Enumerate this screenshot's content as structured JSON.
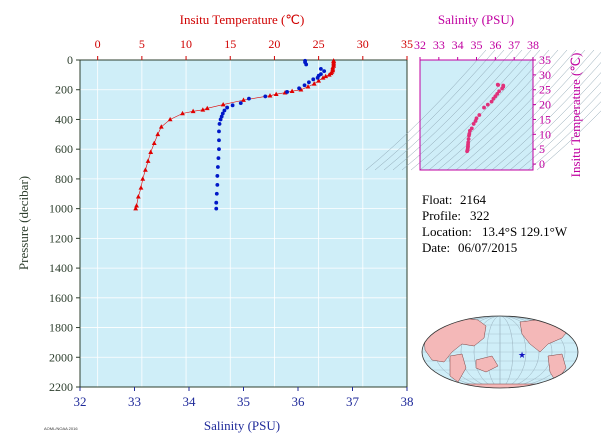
{
  "colors": {
    "plot_bg": "#cfeef8",
    "temperature": "#e00000",
    "salinity": "#0018c8",
    "ts_points": "#e0307a",
    "magenta": "#c000a0",
    "axis_dark": "#2e3f2e",
    "land": "#f4b8b8"
  },
  "chart_data": [
    {
      "type": "scatter",
      "top_title": "Insitu Temperature (℃)",
      "bottom_title": "Salinity (PSU)",
      "left_title": "Pressure (decibar)",
      "temperature_axis": {
        "range": [
          -2,
          35
        ],
        "ticks": [
          "0",
          "5",
          "10",
          "15",
          "20",
          "25",
          "30",
          "35"
        ]
      },
      "salinity_axis": {
        "range": [
          32,
          38
        ],
        "ticks": [
          "32",
          "33",
          "34",
          "35",
          "36",
          "37",
          "38"
        ]
      },
      "pressure_axis": {
        "range": [
          0,
          2200
        ],
        "reversed": true,
        "ticks": [
          "0",
          "200",
          "400",
          "600",
          "800",
          "1000",
          "1200",
          "1400",
          "1600",
          "1800",
          "2000",
          "2200"
        ]
      },
      "temperature_profile": {
        "marker": "triangle",
        "points": [
          [
            26.7,
            5
          ],
          [
            26.7,
            10
          ],
          [
            26.7,
            20
          ],
          [
            26.7,
            30
          ],
          [
            26.7,
            40
          ],
          [
            26.6,
            50
          ],
          [
            26.6,
            60
          ],
          [
            26.6,
            70
          ],
          [
            26.5,
            80
          ],
          [
            26.4,
            90
          ],
          [
            26.2,
            100
          ],
          [
            25.8,
            110
          ],
          [
            25.5,
            120
          ],
          [
            25.0,
            140
          ],
          [
            24.5,
            160
          ],
          [
            23.8,
            180
          ],
          [
            23.0,
            200
          ],
          [
            22.0,
            210
          ],
          [
            21.2,
            220
          ],
          [
            20.2,
            230
          ],
          [
            19.5,
            240
          ],
          [
            16.5,
            270
          ],
          [
            14.2,
            300
          ],
          [
            12.4,
            325
          ],
          [
            11.9,
            335
          ],
          [
            10.8,
            345
          ],
          [
            9.6,
            360
          ],
          [
            8.2,
            400
          ],
          [
            7.2,
            450
          ],
          [
            6.8,
            500
          ],
          [
            6.4,
            560
          ],
          [
            6.0,
            620
          ],
          [
            5.7,
            680
          ],
          [
            5.4,
            740
          ],
          [
            5.1,
            800
          ],
          [
            4.9,
            860
          ],
          [
            4.6,
            920
          ],
          [
            4.4,
            980
          ],
          [
            4.3,
            1000
          ]
        ]
      },
      "salinity_profile": {
        "marker": "circle",
        "points": [
          [
            36.13,
            5
          ],
          [
            36.13,
            15
          ],
          [
            36.15,
            30
          ],
          [
            36.42,
            60
          ],
          [
            36.48,
            75
          ],
          [
            36.42,
            95
          ],
          [
            36.38,
            105
          ],
          [
            36.36,
            120
          ],
          [
            36.28,
            130
          ],
          [
            36.2,
            150
          ],
          [
            36.12,
            170
          ],
          [
            36.02,
            190
          ],
          [
            35.8,
            215
          ],
          [
            35.4,
            245
          ],
          [
            35.1,
            260
          ],
          [
            34.95,
            290
          ],
          [
            34.8,
            305
          ],
          [
            34.7,
            320
          ],
          [
            34.65,
            340
          ],
          [
            34.62,
            360
          ],
          [
            34.6,
            380
          ],
          [
            34.58,
            400
          ],
          [
            34.56,
            430
          ],
          [
            34.55,
            480
          ],
          [
            34.55,
            540
          ],
          [
            34.55,
            600
          ],
          [
            34.54,
            660
          ],
          [
            34.53,
            720
          ],
          [
            34.52,
            780
          ],
          [
            34.52,
            840
          ],
          [
            34.51,
            900
          ],
          [
            34.5,
            960
          ],
          [
            34.5,
            1000
          ]
        ]
      }
    },
    {
      "type": "scatter",
      "top_title": "Salinity (PSU)",
      "right_title": "Insitu Temperature (℃)",
      "salinity_axis": {
        "range": [
          32,
          38
        ],
        "ticks": [
          "32",
          "33",
          "34",
          "35",
          "36",
          "37",
          "38"
        ]
      },
      "temperature_axis": {
        "range": [
          -2,
          35
        ],
        "ticks": [
          "0",
          "5",
          "10",
          "15",
          "20",
          "25",
          "30",
          "35"
        ]
      },
      "ts_points": [
        [
          36.13,
          26.7
        ],
        [
          36.15,
          26.6
        ],
        [
          36.42,
          26.4
        ],
        [
          36.42,
          26.0
        ],
        [
          36.36,
          25.4
        ],
        [
          36.2,
          24.5
        ],
        [
          36.1,
          23.6
        ],
        [
          36.0,
          22.8
        ],
        [
          35.9,
          22.0
        ],
        [
          35.8,
          21.0
        ],
        [
          35.6,
          20.0
        ],
        [
          35.4,
          19.0
        ],
        [
          35.15,
          16.5
        ],
        [
          35.0,
          15.4
        ],
        [
          34.95,
          14.5
        ],
        [
          34.85,
          13.5
        ],
        [
          34.75,
          12.0
        ],
        [
          34.65,
          11.2
        ],
        [
          34.62,
          10.2
        ],
        [
          34.6,
          9.6
        ],
        [
          34.58,
          8.4
        ],
        [
          34.56,
          7.3
        ],
        [
          34.55,
          6.6
        ],
        [
          34.55,
          6.0
        ],
        [
          34.54,
          5.5
        ],
        [
          34.53,
          5.0
        ],
        [
          34.52,
          4.6
        ],
        [
          34.5,
          4.3
        ]
      ]
    }
  ],
  "info": {
    "float_label": "Float:",
    "float_value": "2164",
    "profile_label": "Profile:",
    "profile_value": "322",
    "location_label": "Location:",
    "location_value": "13.4°S  129.1°W",
    "date_label": "Date:",
    "date_value": "06/07/2015"
  },
  "footer_small_text": "AOML/NOAA 2016",
  "map": {
    "marker": "float-location-star"
  }
}
